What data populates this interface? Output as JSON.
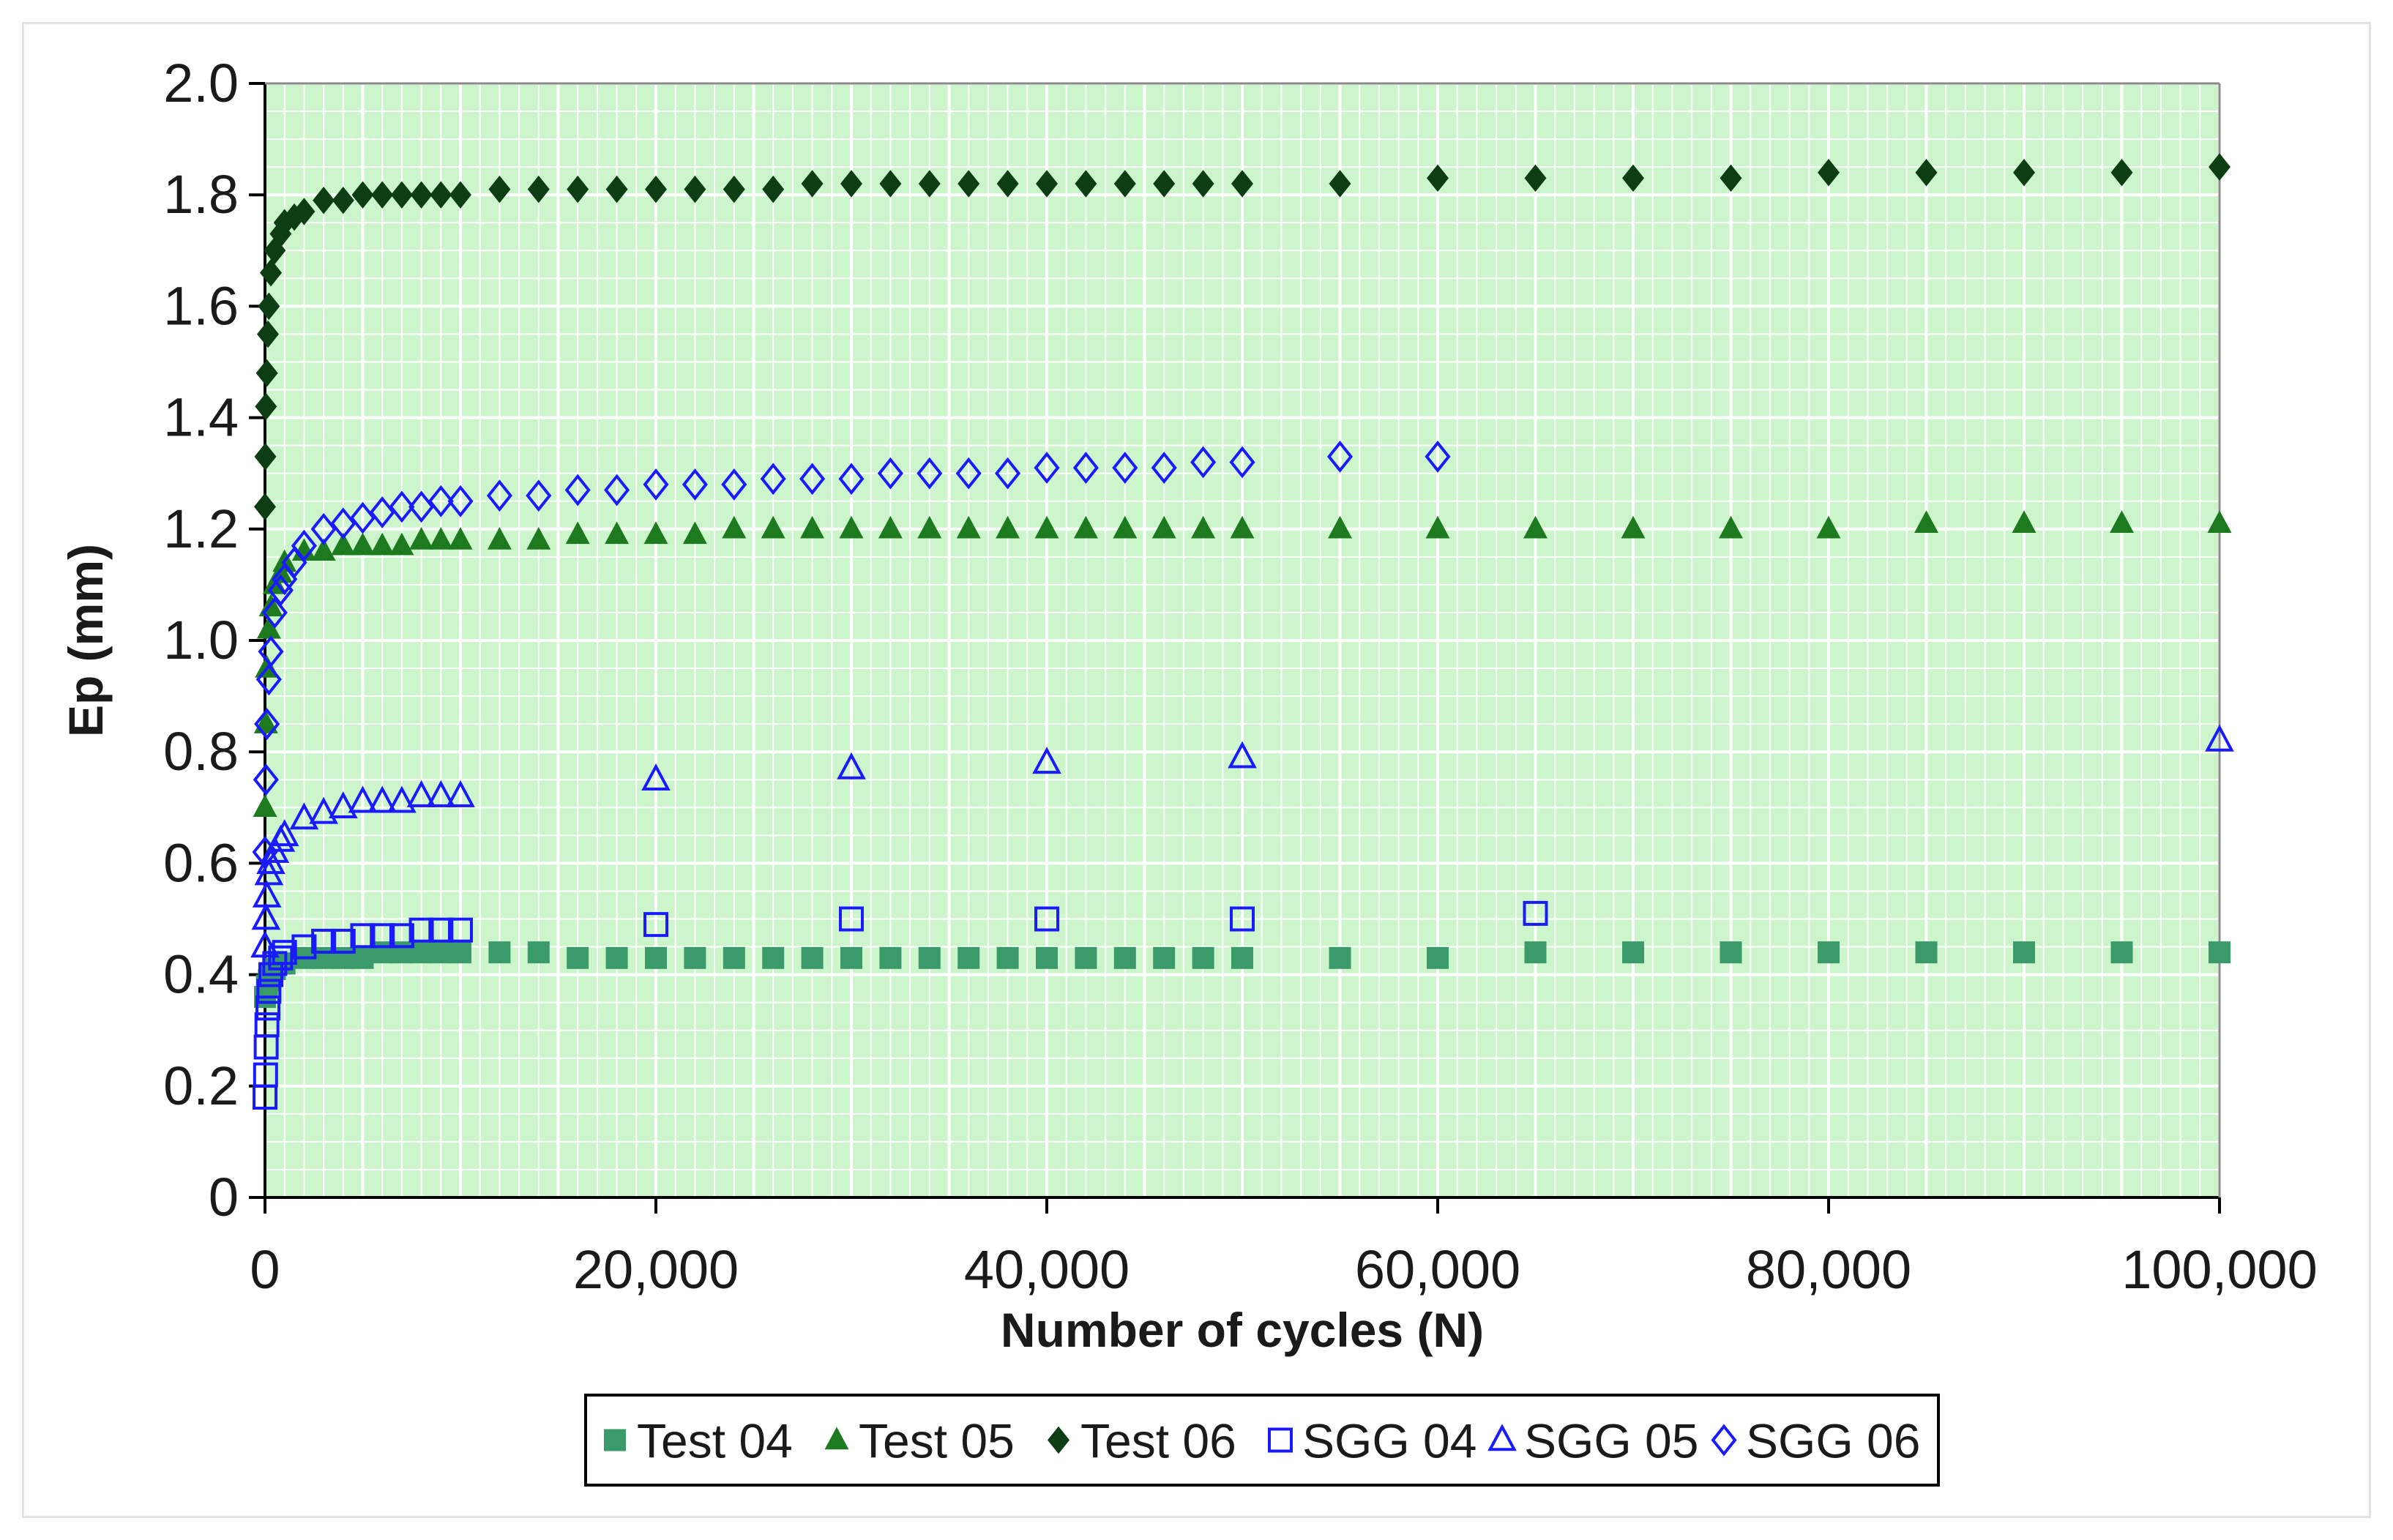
{
  "chart_data": {
    "type": "scatter",
    "title": "",
    "xlabel": "Number of cycles (N)",
    "ylabel": "Ep (mm)",
    "xlim": [
      0,
      100000
    ],
    "ylim": [
      0,
      2.0
    ],
    "x_ticks": [
      "0",
      "20,000",
      "40,000",
      "60,000",
      "80,000",
      "100,000"
    ],
    "x_tick_values": [
      0,
      20000,
      40000,
      60000,
      80000,
      100000
    ],
    "y_ticks": [
      "0",
      "0.2",
      "0.4",
      "0.6",
      "0.8",
      "1.0",
      "1.2",
      "1.4",
      "1.6",
      "1.8",
      "2.0"
    ],
    "y_tick_values": [
      0,
      0.2,
      0.4,
      0.6,
      0.8,
      1.0,
      1.2,
      1.4,
      1.6,
      1.8,
      2.0
    ],
    "grid": true,
    "plot_background": "#ccf5cc",
    "grid_color": "#ffffff",
    "legend_position": "bottom",
    "series": [
      {
        "name": "Test 04",
        "marker": "square-filled",
        "color": "#3a9a6a",
        "x": [
          0,
          100,
          200,
          300,
          500,
          800,
          1000,
          2000,
          3000,
          4000,
          5000,
          6000,
          7000,
          8000,
          9000,
          10000,
          12000,
          14000,
          16000,
          18000,
          20000,
          22000,
          24000,
          26000,
          28000,
          30000,
          32000,
          34000,
          36000,
          38000,
          40000,
          42000,
          44000,
          46000,
          48000,
          50000,
          55000,
          60000,
          65000,
          70000,
          75000,
          80000,
          85000,
          90000,
          95000,
          100000
        ],
        "y": [
          0.36,
          0.38,
          0.39,
          0.4,
          0.41,
          0.42,
          0.42,
          0.43,
          0.43,
          0.43,
          0.43,
          0.44,
          0.44,
          0.44,
          0.44,
          0.44,
          0.44,
          0.44,
          0.43,
          0.43,
          0.43,
          0.43,
          0.43,
          0.43,
          0.43,
          0.43,
          0.43,
          0.43,
          0.43,
          0.43,
          0.43,
          0.43,
          0.43,
          0.43,
          0.43,
          0.43,
          0.43,
          0.43,
          0.44,
          0.44,
          0.44,
          0.44,
          0.44,
          0.44,
          0.44,
          0.44
        ]
      },
      {
        "name": "Test 05",
        "marker": "triangle-filled",
        "color": "#1e7a1e",
        "x": [
          0,
          50,
          100,
          200,
          300,
          500,
          800,
          1000,
          2000,
          3000,
          4000,
          5000,
          6000,
          7000,
          8000,
          9000,
          10000,
          12000,
          14000,
          16000,
          18000,
          20000,
          22000,
          24000,
          26000,
          28000,
          30000,
          32000,
          34000,
          36000,
          38000,
          40000,
          42000,
          44000,
          46000,
          48000,
          50000,
          55000,
          60000,
          65000,
          70000,
          75000,
          80000,
          85000,
          90000,
          95000,
          100000
        ],
        "y": [
          0.7,
          0.85,
          0.95,
          1.02,
          1.06,
          1.1,
          1.12,
          1.14,
          1.16,
          1.16,
          1.17,
          1.17,
          1.17,
          1.17,
          1.18,
          1.18,
          1.18,
          1.18,
          1.18,
          1.19,
          1.19,
          1.19,
          1.19,
          1.2,
          1.2,
          1.2,
          1.2,
          1.2,
          1.2,
          1.2,
          1.2,
          1.2,
          1.2,
          1.2,
          1.2,
          1.2,
          1.2,
          1.2,
          1.2,
          1.2,
          1.2,
          1.2,
          1.2,
          1.21,
          1.21,
          1.21,
          1.21
        ]
      },
      {
        "name": "Test 06",
        "marker": "diamond-filled",
        "color": "#0d3d12",
        "x": [
          0,
          20,
          50,
          100,
          150,
          200,
          300,
          500,
          800,
          1000,
          1500,
          2000,
          3000,
          4000,
          5000,
          6000,
          7000,
          8000,
          9000,
          10000,
          12000,
          14000,
          16000,
          18000,
          20000,
          22000,
          24000,
          26000,
          28000,
          30000,
          32000,
          34000,
          36000,
          38000,
          40000,
          42000,
          44000,
          46000,
          48000,
          50000,
          55000,
          60000,
          65000,
          70000,
          75000,
          80000,
          85000,
          90000,
          95000,
          100000
        ],
        "y": [
          1.24,
          1.33,
          1.42,
          1.48,
          1.55,
          1.6,
          1.66,
          1.7,
          1.73,
          1.75,
          1.76,
          1.77,
          1.79,
          1.79,
          1.8,
          1.8,
          1.8,
          1.8,
          1.8,
          1.8,
          1.81,
          1.81,
          1.81,
          1.81,
          1.81,
          1.81,
          1.81,
          1.81,
          1.82,
          1.82,
          1.82,
          1.82,
          1.82,
          1.82,
          1.82,
          1.82,
          1.82,
          1.82,
          1.82,
          1.82,
          1.82,
          1.83,
          1.83,
          1.83,
          1.83,
          1.84,
          1.84,
          1.84,
          1.84,
          1.85
        ]
      },
      {
        "name": "SGG 04",
        "marker": "square-open",
        "color": "#1a1aff",
        "x": [
          0,
          30,
          60,
          100,
          150,
          200,
          300,
          500,
          800,
          1000,
          2000,
          3000,
          4000,
          5000,
          6000,
          7000,
          8000,
          9000,
          10000,
          20000,
          30000,
          40000,
          50000,
          65000
        ],
        "y": [
          0.18,
          0.22,
          0.27,
          0.31,
          0.34,
          0.37,
          0.4,
          0.42,
          0.43,
          0.44,
          0.45,
          0.46,
          0.46,
          0.47,
          0.47,
          0.47,
          0.48,
          0.48,
          0.48,
          0.49,
          0.5,
          0.5,
          0.5,
          0.51
        ]
      },
      {
        "name": "SGG 05",
        "marker": "triangle-open",
        "color": "#1a1aff",
        "x": [
          0,
          50,
          100,
          200,
          300,
          500,
          800,
          1000,
          2000,
          3000,
          4000,
          5000,
          6000,
          7000,
          8000,
          9000,
          10000,
          20000,
          30000,
          40000,
          50000,
          100000
        ],
        "y": [
          0.45,
          0.5,
          0.54,
          0.58,
          0.6,
          0.62,
          0.64,
          0.65,
          0.68,
          0.69,
          0.7,
          0.71,
          0.71,
          0.71,
          0.72,
          0.72,
          0.72,
          0.75,
          0.77,
          0.78,
          0.79,
          0.82
        ]
      },
      {
        "name": "SGG 06",
        "marker": "diamond-open",
        "color": "#1a1aff",
        "x": [
          0,
          50,
          100,
          200,
          300,
          500,
          800,
          1000,
          1500,
          2000,
          3000,
          4000,
          5000,
          6000,
          7000,
          8000,
          9000,
          10000,
          12000,
          14000,
          16000,
          18000,
          20000,
          22000,
          24000,
          26000,
          28000,
          30000,
          32000,
          34000,
          36000,
          38000,
          40000,
          42000,
          44000,
          46000,
          48000,
          50000,
          55000,
          60000
        ],
        "y": [
          0.62,
          0.75,
          0.85,
          0.93,
          0.98,
          1.05,
          1.09,
          1.11,
          1.14,
          1.17,
          1.2,
          1.21,
          1.22,
          1.23,
          1.24,
          1.24,
          1.25,
          1.25,
          1.26,
          1.26,
          1.27,
          1.27,
          1.28,
          1.28,
          1.28,
          1.29,
          1.29,
          1.29,
          1.3,
          1.3,
          1.3,
          1.3,
          1.31,
          1.31,
          1.31,
          1.31,
          1.32,
          1.32,
          1.33,
          1.33
        ]
      }
    ]
  }
}
